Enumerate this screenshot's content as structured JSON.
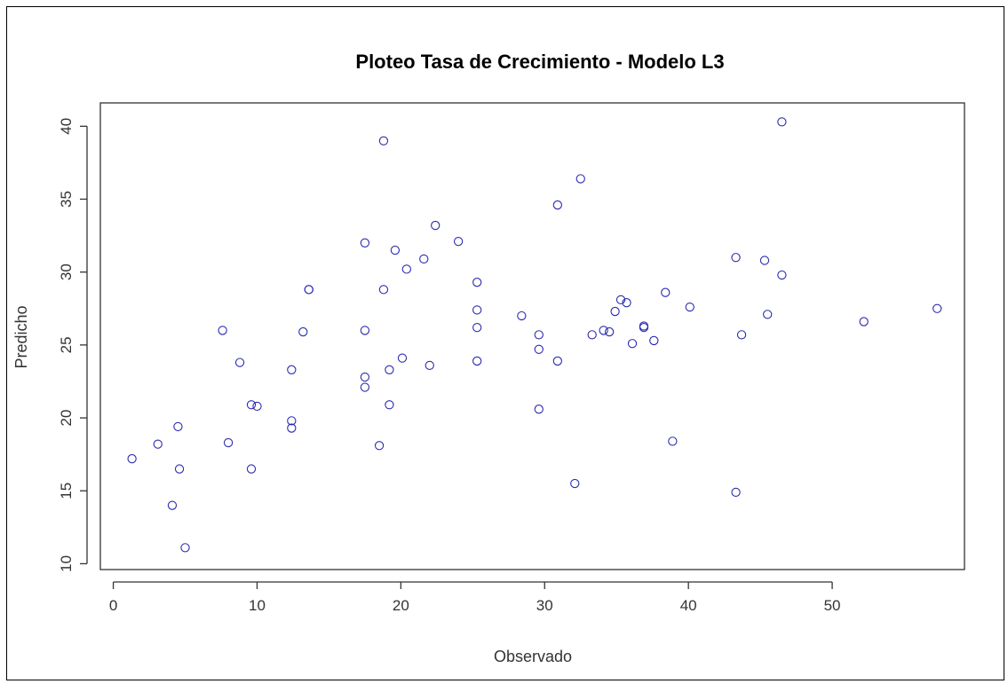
{
  "chart_data": {
    "type": "scatter",
    "title": "Ploteo Tasa de Crecimiento - Modelo L3",
    "xlabel": "Observado",
    "ylabel": "Predicho",
    "xlim": [
      -0.9,
      59.2
    ],
    "ylim": [
      9.6,
      41.6
    ],
    "xticks": [
      0,
      10,
      20,
      30,
      40,
      50
    ],
    "yticks": [
      10,
      15,
      20,
      25,
      30,
      35,
      40
    ],
    "grid": false,
    "point_color": "#2a2ab0",
    "points": [
      [
        1.3,
        17.2
      ],
      [
        3.1,
        18.2
      ],
      [
        4.5,
        19.4
      ],
      [
        4.6,
        16.5
      ],
      [
        4.1,
        14.0
      ],
      [
        5.0,
        11.1
      ],
      [
        7.6,
        26.0
      ],
      [
        8.0,
        18.3
      ],
      [
        8.8,
        23.8
      ],
      [
        9.6,
        20.9
      ],
      [
        10.0,
        20.8
      ],
      [
        9.6,
        16.5
      ],
      [
        12.4,
        23.3
      ],
      [
        12.4,
        19.8
      ],
      [
        12.4,
        19.3
      ],
      [
        13.2,
        25.9
      ],
      [
        13.6,
        28.8
      ],
      [
        13.6,
        28.8
      ],
      [
        17.5,
        32.0
      ],
      [
        17.5,
        26.0
      ],
      [
        17.5,
        22.8
      ],
      [
        17.5,
        22.1
      ],
      [
        18.5,
        18.1
      ],
      [
        18.8,
        28.8
      ],
      [
        18.8,
        39.0
      ],
      [
        19.2,
        23.3
      ],
      [
        19.2,
        20.9
      ],
      [
        19.6,
        31.5
      ],
      [
        20.1,
        24.1
      ],
      [
        20.4,
        30.2
      ],
      [
        21.6,
        30.9
      ],
      [
        22.0,
        23.6
      ],
      [
        22.4,
        33.2
      ],
      [
        24.0,
        32.1
      ],
      [
        25.3,
        29.3
      ],
      [
        25.3,
        27.4
      ],
      [
        25.3,
        26.2
      ],
      [
        25.3,
        23.9
      ],
      [
        28.4,
        27.0
      ],
      [
        29.6,
        25.7
      ],
      [
        29.6,
        24.7
      ],
      [
        29.6,
        20.6
      ],
      [
        30.9,
        34.6
      ],
      [
        30.9,
        23.9
      ],
      [
        32.1,
        15.5
      ],
      [
        32.5,
        36.4
      ],
      [
        33.3,
        25.7
      ],
      [
        34.1,
        26.0
      ],
      [
        34.5,
        25.9
      ],
      [
        34.9,
        27.3
      ],
      [
        35.3,
        28.1
      ],
      [
        35.7,
        27.9
      ],
      [
        36.1,
        25.1
      ],
      [
        36.9,
        26.3
      ],
      [
        36.9,
        26.2
      ],
      [
        37.6,
        25.3
      ],
      [
        38.4,
        28.6
      ],
      [
        38.9,
        18.4
      ],
      [
        40.1,
        27.6
      ],
      [
        43.3,
        31.0
      ],
      [
        43.3,
        14.9
      ],
      [
        43.7,
        25.7
      ],
      [
        45.3,
        30.8
      ],
      [
        45.5,
        27.1
      ],
      [
        46.5,
        40.3
      ],
      [
        46.5,
        29.8
      ],
      [
        52.2,
        26.6
      ],
      [
        57.3,
        27.5
      ]
    ]
  }
}
